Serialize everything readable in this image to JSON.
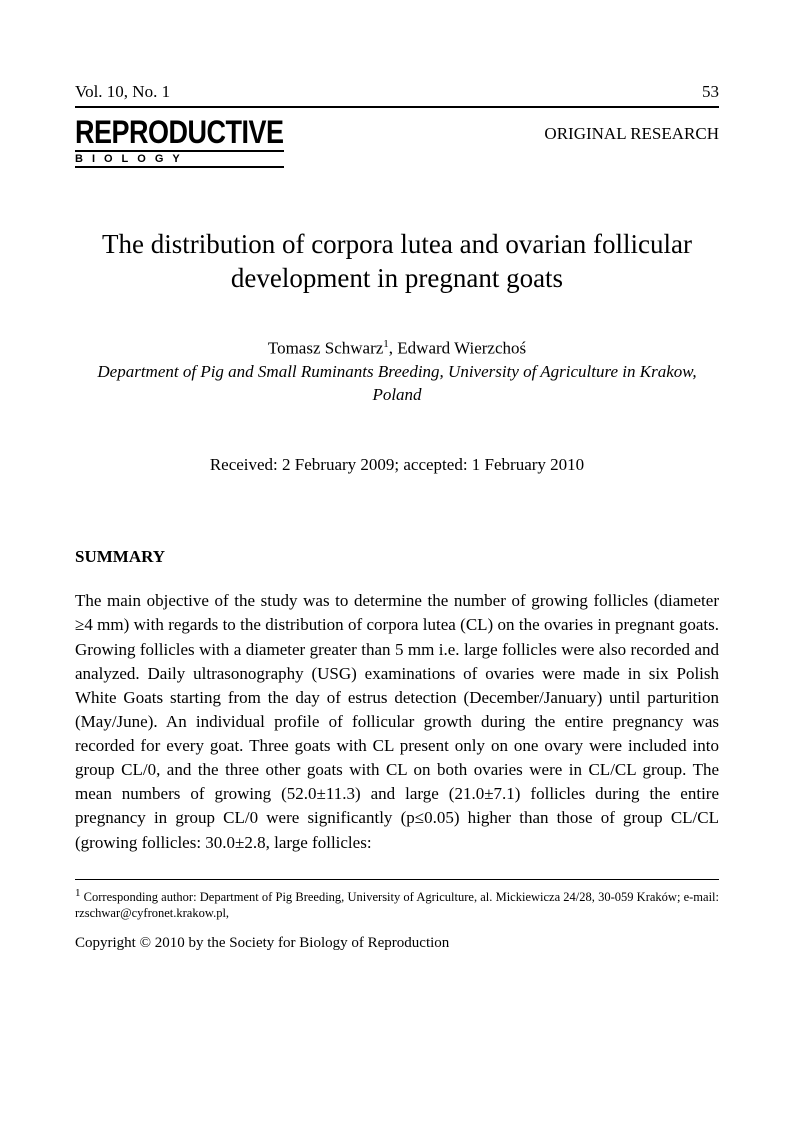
{
  "header": {
    "volume": "Vol. 10, No. 1",
    "page": "53"
  },
  "journal": {
    "logo_main": "REPRODUCTIVE",
    "logo_sub": "BIOLOGY"
  },
  "article_type": "ORIGINAL RESEARCH",
  "title": "The distribution of corpora lutea and ovarian follicular development in pregnant goats",
  "authors": "Tomasz Schwarz",
  "author_sup": "1",
  "authors_tail": ", Edward Wierzchoś",
  "affiliation": "Department of Pig and Small Ruminants Breeding, University of Agriculture in Krakow, Poland",
  "dates": "Received: 2 February 2009; accepted: 1 February 2010",
  "section_heading": "SUMMARY",
  "body": "The main objective of the study was to determine the number of growing follicles (diameter ≥4 mm) with regards to the distribution of corpora lutea (CL) on the ovaries in pregnant goats. Growing follicles with a diameter greater than 5 mm i.e. large follicles were also recorded and analyzed. Daily ultrasonography (USG) examinations of ovaries were made in six Polish White Goats starting from the day of estrus detection (December/January) until parturition (May/June). An individual profile of follicular growth during the entire pregnancy was recorded for every goat. Three goats with CL present only on one ovary were included into group CL/0, and the three other goats with CL on both ovaries were in CL/CL group. The mean numbers of growing (52.0±11.3) and large (21.0±7.1) follicles during the entire pregnancy in group CL/0 were significantly (p≤0.05) higher than those of group CL/CL (growing follicles: 30.0±2.8, large follicles:",
  "footnote_sup": "1",
  "footnote": " Corresponding author: Department of Pig Breeding, University of Agriculture, al. Mickiewicza 24/28, 30-059 Kraków; e-mail: rzschwar@cyfronet.krakow.pl,",
  "copyright": "Copyright © 2010 by the Society for Biology of Reproduction"
}
